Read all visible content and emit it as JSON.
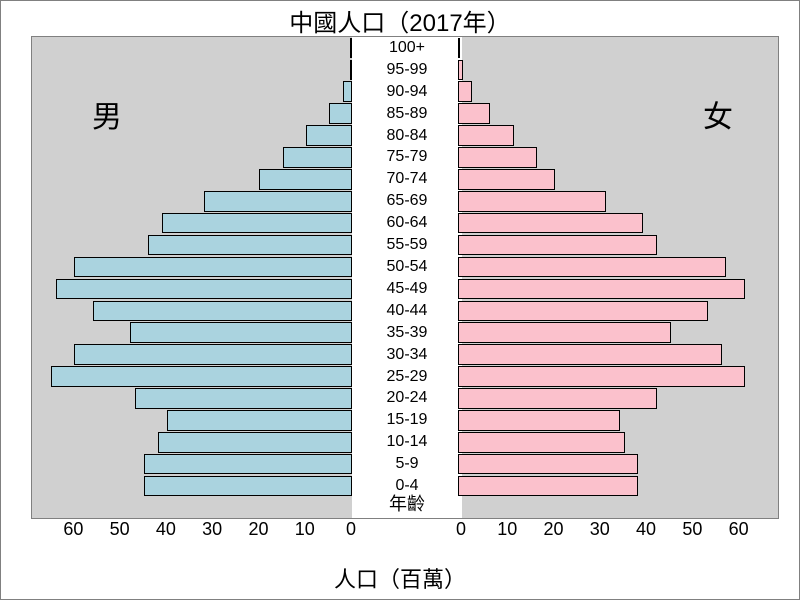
{
  "chart": {
    "type": "population-pyramid",
    "title": "中國人口（2017年）",
    "male_label": "男",
    "female_label": "女",
    "age_axis_label": "年齡",
    "x_axis_label": "人口（百萬）",
    "background_color": "#d0d0d0",
    "border_color": "#808080",
    "bar_border": "#000000",
    "male_color": "#aad3df",
    "female_color": "#fbc1cc",
    "title_fontsize": 24,
    "axis_fontsize": 18,
    "gender_fontsize": 30,
    "age_fontsize": 16,
    "x_ticks": [
      0,
      10,
      20,
      30,
      40,
      50,
      60
    ],
    "x_max": 67,
    "bar_gap_pct": 0.03,
    "age_groups": [
      {
        "label": "0-4",
        "male": 45,
        "female": 39
      },
      {
        "label": "5-9",
        "male": 45,
        "female": 39
      },
      {
        "label": "10-14",
        "male": 42,
        "female": 36
      },
      {
        "label": "15-19",
        "male": 40,
        "female": 35
      },
      {
        "label": "20-24",
        "male": 47,
        "female": 43
      },
      {
        "label": "25-29",
        "male": 65,
        "female": 62
      },
      {
        "label": "30-34",
        "male": 60,
        "female": 57
      },
      {
        "label": "35-39",
        "male": 48,
        "female": 46
      },
      {
        "label": "40-44",
        "male": 56,
        "female": 54
      },
      {
        "label": "45-49",
        "male": 64,
        "female": 62
      },
      {
        "label": "50-54",
        "male": 60,
        "female": 58
      },
      {
        "label": "55-59",
        "male": 44,
        "female": 43
      },
      {
        "label": "60-64",
        "male": 41,
        "female": 40
      },
      {
        "label": "65-69",
        "male": 32,
        "female": 32
      },
      {
        "label": "70-74",
        "male": 20,
        "female": 21
      },
      {
        "label": "75-79",
        "male": 15,
        "female": 17
      },
      {
        "label": "80-84",
        "male": 10,
        "female": 12
      },
      {
        "label": "85-89",
        "male": 5,
        "female": 7
      },
      {
        "label": "90-94",
        "male": 2,
        "female": 3
      },
      {
        "label": "95-99",
        "male": 0.5,
        "female": 1
      },
      {
        "label": "100+",
        "male": 0.2,
        "female": 0.4
      }
    ]
  }
}
